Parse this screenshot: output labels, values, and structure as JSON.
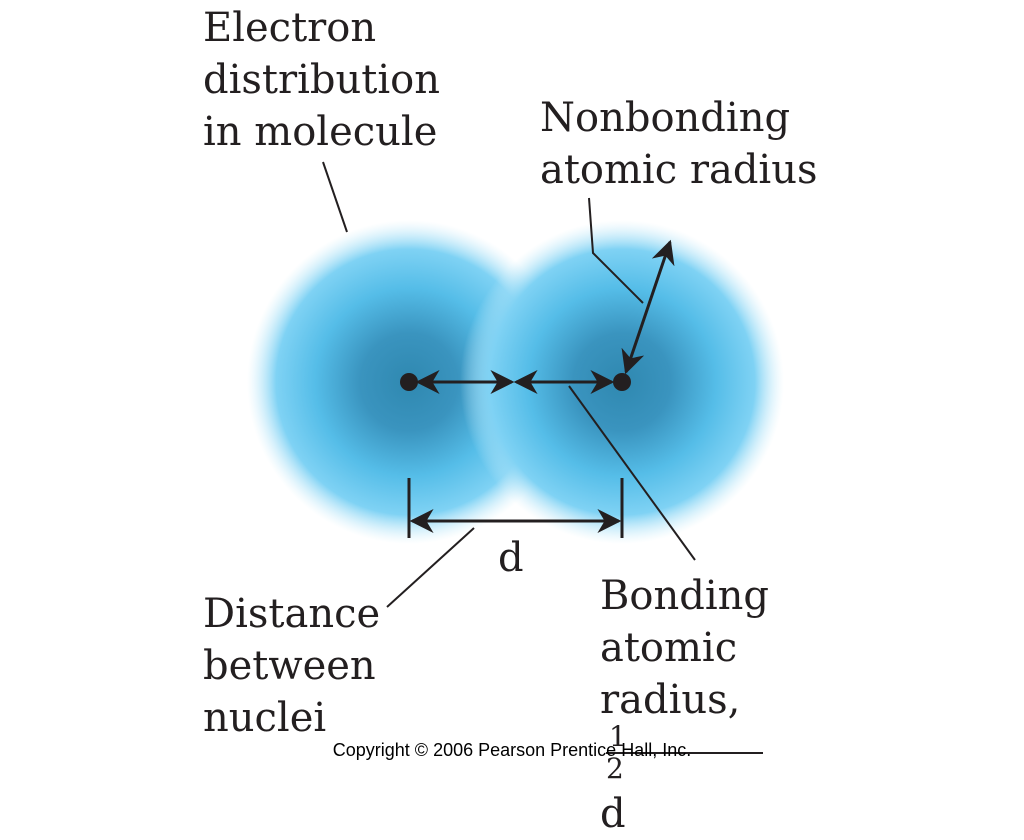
{
  "labels": {
    "electron_distribution": [
      "Electron",
      "distribution",
      "in molecule"
    ],
    "nonbonding_radius": [
      "Nonbonding",
      "atomic radius"
    ],
    "distance_between_nuclei": [
      "Distance",
      "between",
      "nuclei"
    ],
    "bonding_radius": {
      "line1": "Bonding",
      "line2": "atomic",
      "line3_prefix": "radius,",
      "fraction_numerator": "1",
      "fraction_denominator": "2",
      "line3_suffix": "d"
    },
    "d": "d"
  },
  "copyright": "Copyright © 2006 Pearson Prentice Hall, Inc.",
  "colors": {
    "cloud_core": "#2f88b0",
    "cloud_mid": "#58c4ee",
    "cloud_edge": "#9fdff8",
    "ink": "#231f20"
  }
}
